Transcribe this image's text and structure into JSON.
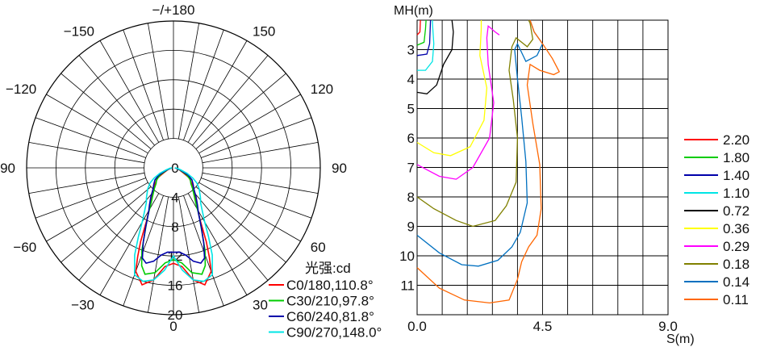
{
  "chart_data": [
    {
      "type": "polar",
      "chart": "luminous intensity distribution",
      "angle_labels": [
        {
          "text": "−/+180",
          "angle": 180
        },
        {
          "text": "−150",
          "angle": -150
        },
        {
          "text": "150",
          "angle": 150
        },
        {
          "text": "−120",
          "angle": -120
        },
        {
          "text": "120",
          "angle": 120
        },
        {
          "text": "−90",
          "angle": -90
        },
        {
          "text": "90",
          "angle": 90
        },
        {
          "text": "−60",
          "angle": -60
        },
        {
          "text": "60",
          "angle": 60
        },
        {
          "text": "−30",
          "angle": -30
        },
        {
          "text": "30",
          "angle": 30
        },
        {
          "text": "0",
          "angle": 0
        }
      ],
      "radial_labels": [
        "0",
        "4",
        "8",
        "12",
        "16",
        "20"
      ],
      "rmax": 20,
      "ring_count": 5,
      "legend_title": "光强:cd",
      "legend_position": "bottom-right",
      "series": [
        {
          "name": "C0/180,110.8°",
          "color": "#ff0000",
          "points": [
            [
              0,
              13
            ],
            [
              5,
              13.5
            ],
            [
              10,
              15.5
            ],
            [
              15,
              16.5
            ],
            [
              20,
              15
            ],
            [
              22,
              13
            ],
            [
              24,
              11
            ],
            [
              27,
              8
            ],
            [
              32,
              6
            ],
            [
              37,
              5
            ],
            [
              42,
              4
            ],
            [
              47,
              3.5
            ],
            [
              52,
              3
            ],
            [
              58,
              2.5
            ],
            [
              63,
              1.5
            ],
            [
              72,
              0.8
            ],
            [
              82,
              0.4
            ],
            [
              88,
              0.2
            ]
          ]
        },
        {
          "name": "C30/210,97.8°",
          "color": "#00cc00",
          "points": [
            [
              0,
              12.5
            ],
            [
              5,
              13
            ],
            [
              10,
              14.5
            ],
            [
              15,
              15
            ],
            [
              18,
              14
            ],
            [
              21,
              12
            ],
            [
              24,
              9.5
            ],
            [
              28,
              7.5
            ],
            [
              33,
              5.5
            ],
            [
              38,
              4.5
            ],
            [
              43,
              3.8
            ],
            [
              48,
              3.2
            ],
            [
              55,
              2.8
            ],
            [
              62,
              2
            ],
            [
              70,
              1
            ],
            [
              80,
              0.5
            ],
            [
              88,
              0.2
            ]
          ]
        },
        {
          "name": "C60/240,81.8°",
          "color": "#0000aa",
          "points": [
            [
              0,
              11.5
            ],
            [
              4,
              11.5
            ],
            [
              8,
              12
            ],
            [
              12,
              13
            ],
            [
              16,
              13.5
            ],
            [
              19,
              13
            ],
            [
              22,
              11
            ],
            [
              25,
              9
            ],
            [
              29,
              7
            ],
            [
              33,
              6
            ],
            [
              38,
              5
            ],
            [
              44,
              4
            ],
            [
              50,
              3.5
            ],
            [
              57,
              3
            ],
            [
              64,
              2.2
            ],
            [
              72,
              1
            ],
            [
              82,
              0.4
            ],
            [
              88,
              0.2
            ]
          ]
        },
        {
          "name": "C90/270,148.0°",
          "color": "#00e5e5",
          "points": [
            [
              0,
              12
            ],
            [
              5,
              14
            ],
            [
              10,
              15.5
            ],
            [
              15,
              16
            ],
            [
              20,
              15.5
            ],
            [
              24,
              13
            ],
            [
              27,
              10.5
            ],
            [
              30,
              8.5
            ],
            [
              34,
              7
            ],
            [
              38,
              6
            ],
            [
              42,
              5.5
            ],
            [
              46,
              5
            ],
            [
              51,
              4.5
            ],
            [
              57,
              3.8
            ],
            [
              62,
              3
            ],
            [
              68,
              2
            ],
            [
              75,
              1
            ],
            [
              84,
              0.5
            ],
            [
              89,
              0.2
            ]
          ]
        }
      ]
    },
    {
      "type": "contour",
      "chart": "illuminance isolux",
      "ylabel": "MH(m)",
      "xlabel": "S(m)",
      "x_ticks": [
        "0.0",
        "4.5",
        "9.0"
      ],
      "xlim": [
        0,
        9
      ],
      "y_ticks": [
        "3",
        "4",
        "5",
        "6",
        "7",
        "8",
        "9",
        "10",
        "11"
      ],
      "ylim": [
        2,
        12
      ],
      "grid": true,
      "grid_columns": 10,
      "grid_rows": 10,
      "legend_position": "right",
      "series": [
        {
          "name": "2.20",
          "color": "#ff0000",
          "points": [
            [
              0,
              2.5
            ],
            [
              0.1,
              2.4
            ],
            [
              0.12,
              2
            ]
          ]
        },
        {
          "name": "1.80",
          "color": "#00cc00",
          "points": [
            [
              0,
              2.85
            ],
            [
              0.25,
              2.75
            ],
            [
              0.3,
              2.3
            ],
            [
              0.32,
              2
            ]
          ]
        },
        {
          "name": "1.40",
          "color": "#0000aa",
          "points": [
            [
              0,
              3.2
            ],
            [
              0.35,
              3.15
            ],
            [
              0.45,
              2.8
            ],
            [
              0.48,
              2
            ]
          ]
        },
        {
          "name": "1.10",
          "color": "#00e5e5",
          "points": [
            [
              0,
              3.7
            ],
            [
              0.3,
              3.7
            ],
            [
              0.55,
              3.4
            ],
            [
              0.6,
              2.8
            ],
            [
              0.55,
              2.1
            ],
            [
              0.55,
              2
            ]
          ]
        },
        {
          "name": "0.72",
          "color": "#000000",
          "points": [
            [
              0,
              4.45
            ],
            [
              0.35,
              4.5
            ],
            [
              0.7,
              4.2
            ],
            [
              0.95,
              3.5
            ],
            [
              1.25,
              3
            ],
            [
              1.3,
              2.4
            ],
            [
              1.25,
              2
            ]
          ]
        },
        {
          "name": "0.36",
          "color": "#ffff00",
          "points": [
            [
              0,
              6.15
            ],
            [
              0.6,
              6.5
            ],
            [
              1.2,
              6.6
            ],
            [
              1.9,
              6.3
            ],
            [
              2.4,
              5.4
            ],
            [
              2.5,
              4.3
            ],
            [
              2.25,
              3.2
            ],
            [
              2.3,
              2.3
            ],
            [
              2.3,
              2
            ]
          ]
        },
        {
          "name": "0.29",
          "color": "#ff00ff",
          "points": [
            [
              0,
              6.9
            ],
            [
              0.8,
              7.3
            ],
            [
              1.4,
              7.4
            ],
            [
              2,
              7
            ],
            [
              2.6,
              6
            ],
            [
              2.75,
              4.8
            ],
            [
              2.55,
              3.5
            ],
            [
              2.5,
              2.6
            ],
            [
              2.55,
              2.2
            ],
            [
              2.8,
              2.4
            ],
            [
              2.95,
              2.5
            ]
          ]
        },
        {
          "name": "0.18",
          "color": "#808000",
          "points": [
            [
              0,
              8
            ],
            [
              0.6,
              8.4
            ],
            [
              1.4,
              8.8
            ],
            [
              2,
              9
            ],
            [
              2.8,
              8.8
            ],
            [
              3.2,
              8.3
            ],
            [
              3.55,
              7.5
            ],
            [
              3.6,
              6
            ],
            [
              3.45,
              4.7
            ],
            [
              3.3,
              3.7
            ],
            [
              3.4,
              2.9
            ],
            [
              3.55,
              2.6
            ],
            [
              3.95,
              2.9
            ],
            [
              4.15,
              2.65
            ],
            [
              4.05,
              2.1
            ],
            [
              4.0,
              2
            ]
          ]
        },
        {
          "name": "0.14",
          "color": "#0070c0",
          "points": [
            [
              0,
              9.3
            ],
            [
              0.8,
              9.9
            ],
            [
              1.6,
              10.3
            ],
            [
              2.2,
              10.35
            ],
            [
              2.9,
              10.15
            ],
            [
              3.4,
              9.7
            ],
            [
              3.7,
              9.2
            ],
            [
              3.95,
              8.2
            ],
            [
              3.9,
              6.8
            ],
            [
              3.75,
              5.3
            ],
            [
              3.6,
              4
            ],
            [
              3.5,
              3
            ],
            [
              3.6,
              2.8
            ],
            [
              3.9,
              3.4
            ],
            [
              4.3,
              3.2
            ],
            [
              4.5,
              2.8
            ],
            [
              4.2,
              2.4
            ],
            [
              4.05,
              2
            ]
          ]
        },
        {
          "name": "0.11",
          "color": "#ff6600",
          "points": [
            [
              0,
              10.4
            ],
            [
              0.8,
              11.1
            ],
            [
              1.7,
              11.5
            ],
            [
              2.6,
              11.6
            ],
            [
              3.3,
              11.5
            ],
            [
              3.6,
              10.8
            ],
            [
              3.75,
              10.2
            ],
            [
              4.0,
              9.7
            ],
            [
              4.3,
              9.3
            ],
            [
              4.45,
              8.4
            ],
            [
              4.4,
              6.9
            ],
            [
              4.15,
              5.5
            ],
            [
              3.95,
              4.2
            ],
            [
              4.05,
              3.5
            ],
            [
              4.4,
              3.7
            ],
            [
              4.9,
              3.85
            ],
            [
              5.1,
              3.75
            ],
            [
              4.85,
              3.3
            ],
            [
              4.5,
              2.8
            ],
            [
              4.2,
              2.4
            ],
            [
              4.05,
              2
            ]
          ]
        }
      ]
    }
  ]
}
